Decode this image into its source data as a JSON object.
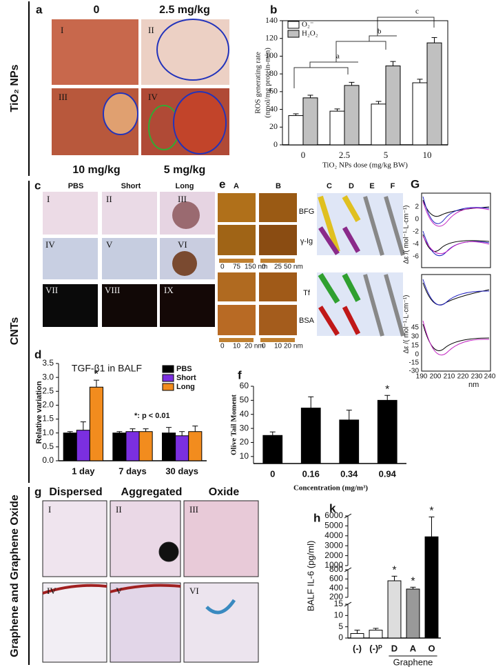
{
  "side_labels": [
    "TiO₂ NPs",
    "CNTs",
    "Graphene and Graphene Oxide"
  ],
  "panel_a": {
    "label": "a",
    "headers": [
      "0",
      "2.5 mg/kg"
    ],
    "footers": [
      "10 mg/kg",
      "5 mg/kg"
    ],
    "images": [
      "I",
      "II",
      "III",
      "IV"
    ]
  },
  "panel_c": {
    "label": "c",
    "headers": [
      "PBS",
      "Short",
      "Long"
    ],
    "images": [
      "I",
      "II",
      "III",
      "IV",
      "V",
      "VI",
      "VII",
      "VIII",
      "IX"
    ]
  },
  "panel_e": {
    "label": "e",
    "columns": [
      "A",
      "B",
      "C",
      "D",
      "E",
      "F"
    ],
    "rows": [
      "BFG",
      "γ-Ig",
      "Tf",
      "BSA"
    ],
    "colorbars": [
      [
        "0",
        "75",
        "150 nm"
      ],
      [
        "0",
        "25",
        "50 nm"
      ],
      [
        "0",
        "10",
        "20 nm"
      ],
      [
        "0",
        "10",
        "20 nm"
      ]
    ]
  },
  "panel_G": {
    "label": "G",
    "x_unit": "nm",
    "xticks": [
      "190",
      "200",
      "210",
      "220",
      "230",
      "240"
    ],
    "yticks_top": [
      "2",
      "0",
      "-2",
      "-4",
      "-6"
    ],
    "yticks_bottom": [
      "45",
      "30",
      "15",
      "0",
      "-15",
      "-30"
    ],
    "ylabel": "Δε /( mol⁻¹·L·cm⁻¹)"
  },
  "panel_g": {
    "label": "g",
    "headers": [
      "Dispersed",
      "Aggregated",
      "Oxide"
    ],
    "images": [
      "I",
      "II",
      "III",
      "IV",
      "V",
      "VI"
    ]
  },
  "chart_data": [
    {
      "type": "bar",
      "panel": "b",
      "ylabel": [
        "ROS generating rate",
        "(nmol/mg protein-min)"
      ],
      "xlabel": "TiO₂ NPs dose (mg/kg BW)",
      "categories": [
        "0",
        "2.5",
        "5",
        "10"
      ],
      "series": [
        {
          "name": "O₂⁻",
          "color": "#ffffff",
          "values": [
            33,
            38,
            46,
            70
          ],
          "errors": [
            2,
            2.5,
            3,
            4
          ]
        },
        {
          "name": "H₂O₂",
          "color": "#c0c0c0",
          "values": [
            53,
            67,
            89,
            115
          ],
          "errors": [
            3,
            3.5,
            5,
            6
          ]
        }
      ],
      "ylim": [
        0,
        140
      ],
      "yticks": [
        0,
        20,
        40,
        60,
        80,
        100,
        120,
        140
      ],
      "annotations": [
        "a",
        "b",
        "c"
      ],
      "legend": "upper left"
    },
    {
      "type": "bar",
      "panel": "d",
      "title": "TGF-β1 in BALF",
      "ylabel": "Relative variation",
      "categories": [
        "1 day",
        "7 days",
        "30 days"
      ],
      "series": [
        {
          "name": "PBS",
          "color": "#000000",
          "values": [
            1.0,
            1.0,
            1.0
          ],
          "errors": [
            0.05,
            0.05,
            0.2
          ]
        },
        {
          "name": "Short",
          "color": "#7b2fe0",
          "values": [
            1.1,
            1.05,
            0.9
          ],
          "errors": [
            0.3,
            0.1,
            0.15
          ]
        },
        {
          "name": "Long",
          "color": "#f28c1e",
          "values": [
            2.65,
            1.05,
            1.05
          ],
          "errors": [
            0.25,
            0.1,
            0.2
          ],
          "annotations": [
            "*",
            null,
            null
          ]
        }
      ],
      "ylim": [
        0,
        3.5
      ],
      "yticks": [
        {
          "value": 0,
          "label": "0.0"
        },
        {
          "value": 0.5,
          "label": "0.5"
        },
        {
          "value": 1,
          "label": "1.0"
        },
        {
          "value": 1.5,
          "label": "1.5"
        },
        {
          "value": 2,
          "label": "2.0"
        },
        {
          "value": 2.5,
          "label": "2.5"
        },
        {
          "value": 3,
          "label": "3.0"
        },
        {
          "value": 3.5,
          "label": "3.5"
        }
      ],
      "annotation": "*: p < 0.01",
      "legend": "upper right"
    },
    {
      "type": "bar",
      "panel": "f",
      "ylabel": "Olive Tail Moment",
      "xlabel": "Concentration (mg/m³)",
      "categories": [
        "0",
        "0.16",
        "0.34",
        "0.94"
      ],
      "values": [
        25,
        44.5,
        36,
        50
      ],
      "errors": [
        2.5,
        8,
        7,
        3.5
      ],
      "value_annotations": [
        null,
        null,
        null,
        "*"
      ],
      "color": "#000000",
      "ylim": [
        5,
        60
      ],
      "yticks": [
        10,
        20,
        30,
        40,
        50,
        60
      ]
    },
    {
      "type": "bar",
      "panel": "h",
      "sublabel": "k",
      "ylabel": "BALF IL-6 (pg/ml)",
      "categories": [
        "(-)",
        "(-)ᴾ",
        "D",
        "A",
        "O"
      ],
      "group_label": "Graphene",
      "values": [
        2,
        3.5,
        560,
        380,
        3900
      ],
      "errors": [
        1.5,
        0.8,
        100,
        40,
        2000
      ],
      "colors": [
        "#ffffff",
        "#ffffff",
        "#dddddd",
        "#999999",
        "#000000"
      ],
      "value_annotations": [
        null,
        null,
        "*",
        "*",
        "*"
      ],
      "segments": [
        {
          "ylim": [
            0,
            15
          ],
          "yticks": [
            0,
            5,
            10,
            15
          ]
        },
        {
          "ylim": [
            200,
            800
          ],
          "yticks": [
            200,
            400,
            600,
            800
          ]
        },
        {
          "ylim": [
            1000,
            6000
          ],
          "yticks": [
            1000,
            2000,
            3000,
            4000,
            5000,
            6000
          ]
        }
      ]
    }
  ]
}
